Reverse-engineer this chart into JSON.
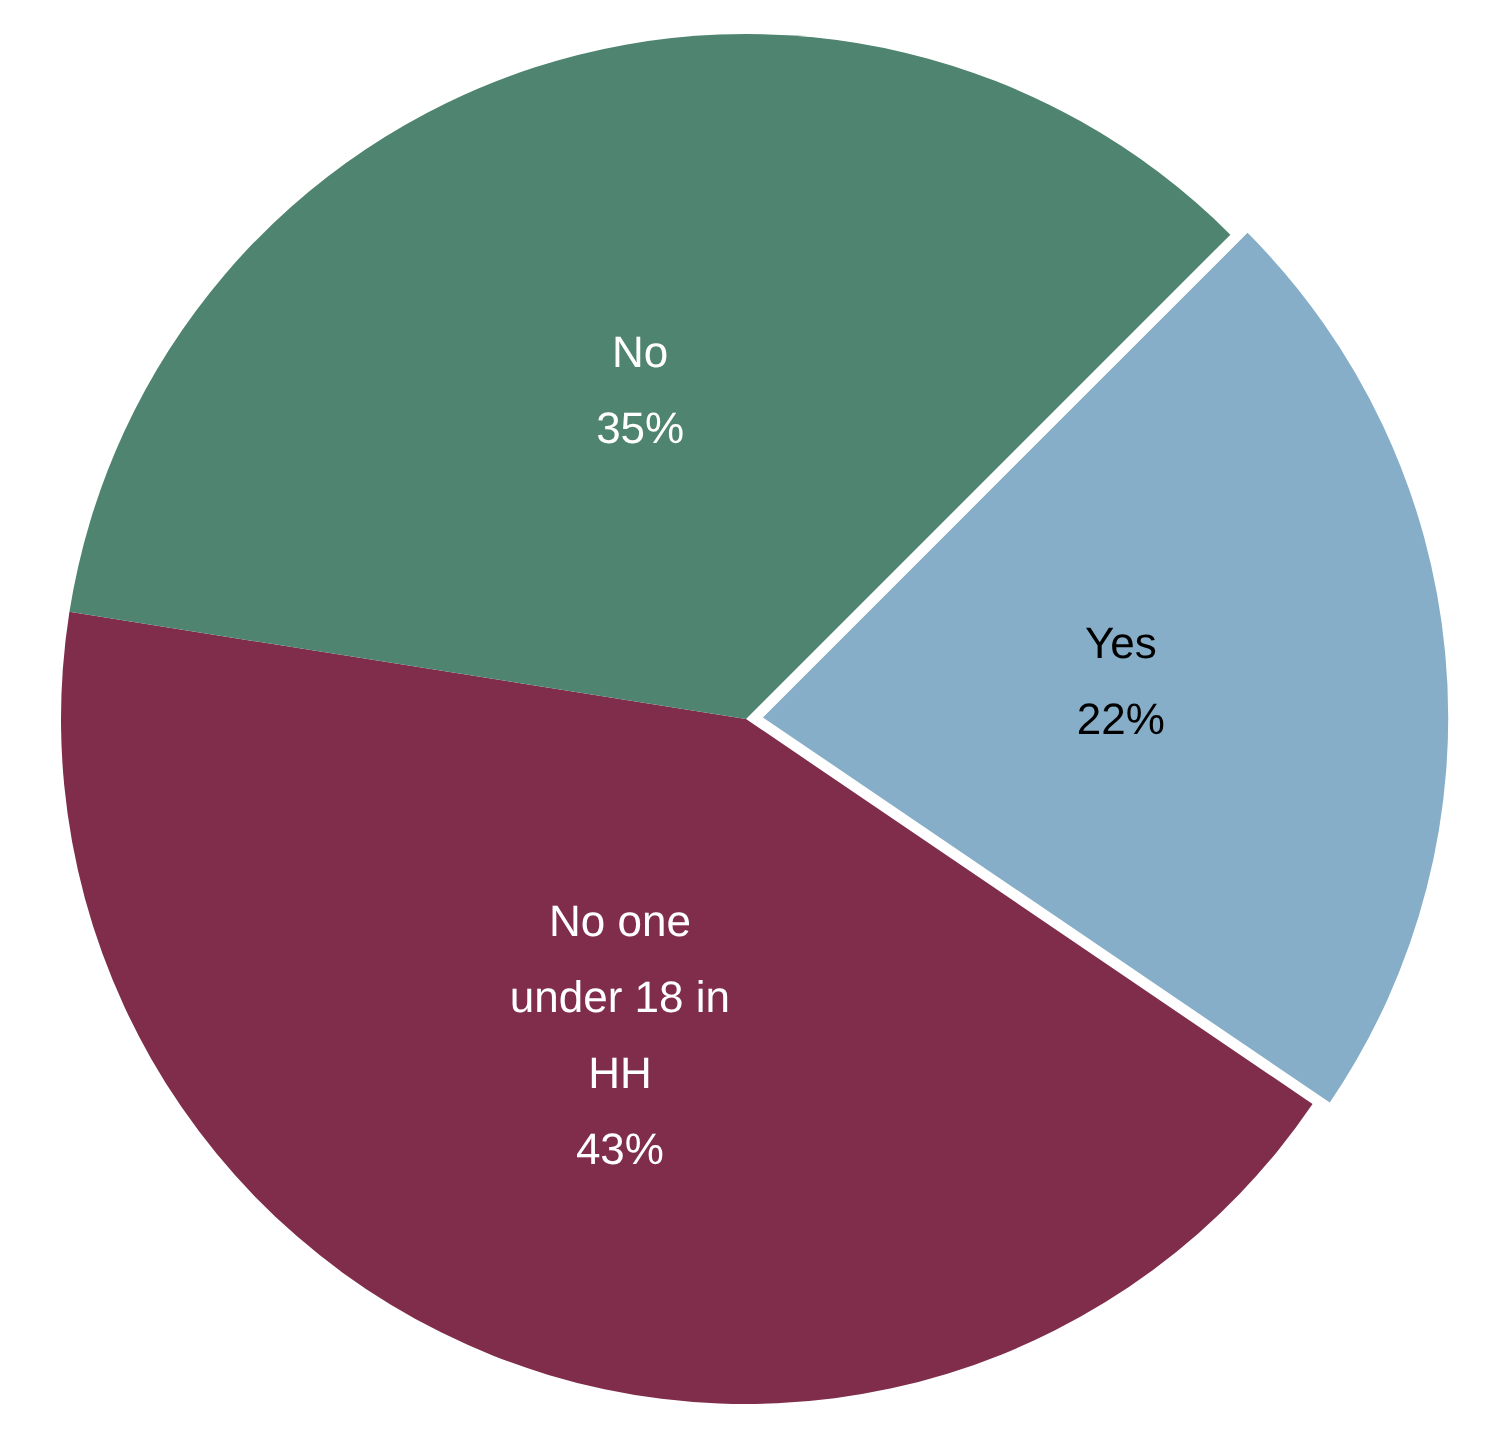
{
  "chart_data": {
    "type": "pie",
    "categories": [
      "Yes",
      "No one under 18 in HH",
      "No"
    ],
    "values": [
      22,
      43,
      35
    ],
    "colors": [
      "#87aec8",
      "#7f2d4b",
      "#4e8470"
    ],
    "value_labels": [
      "22%",
      "43%",
      "35%"
    ],
    "legend": false
  }
}
